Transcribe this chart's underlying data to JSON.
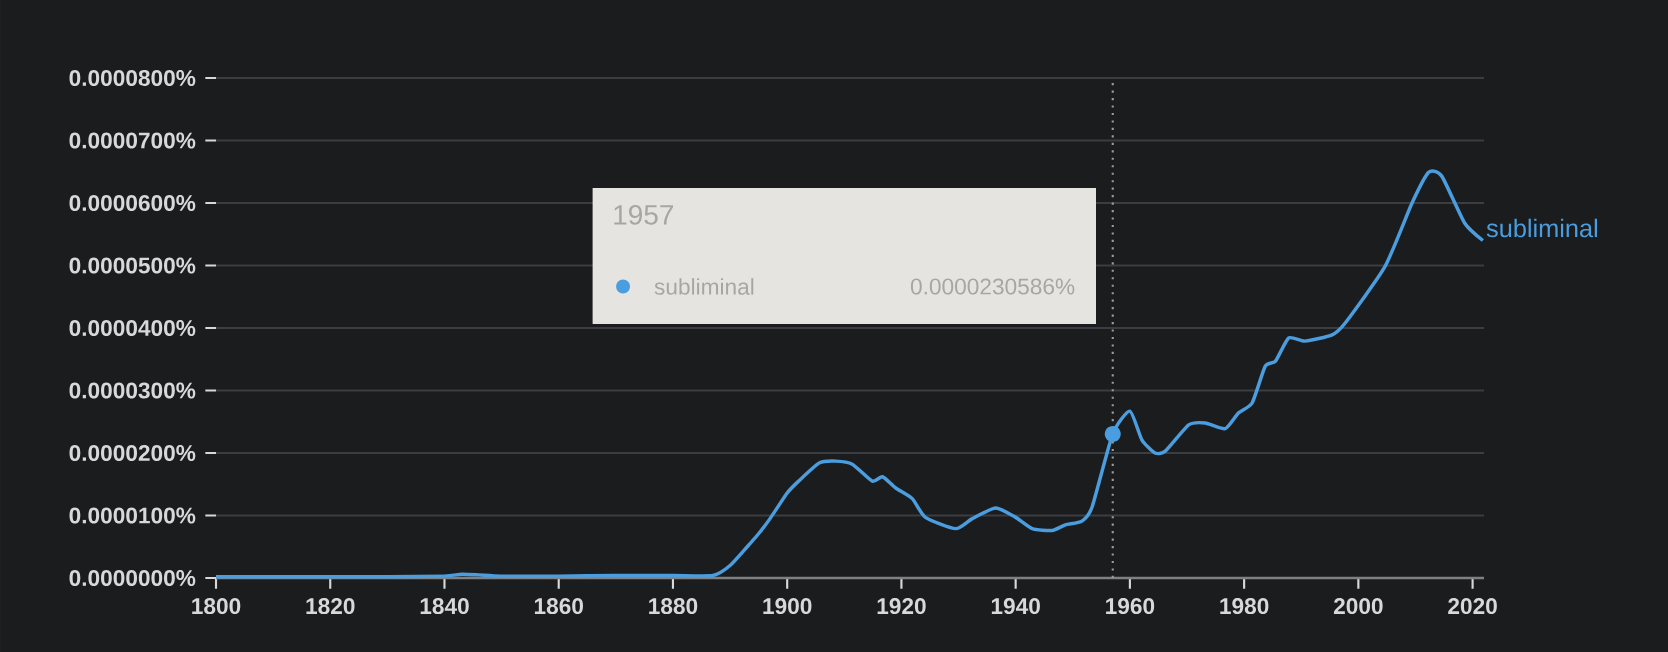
{
  "chart_data": {
    "type": "line",
    "x": [
      1800,
      1810,
      1820,
      1830,
      1840,
      1843,
      1846,
      1850,
      1860,
      1870,
      1880,
      1887,
      1890,
      1893,
      1895.1,
      1897,
      1900,
      1902,
      1905.6,
      1908.5,
      1911.4,
      1914.9,
      1916.7,
      1919,
      1921.9,
      1924.2,
      1929.5,
      1932.4,
      1936.5,
      1940,
      1942.9,
      1946.4,
      1948.7,
      1951.6,
      1953.4,
      1957,
      1960,
      1962.1,
      1964.4,
      1966.2,
      1970.3,
      1973.2,
      1976.7,
      1979,
      1981.4,
      1983.7,
      1985.5,
      1987.8,
      1990.7,
      1995.4,
      1997.7,
      2004.7,
      2009.4,
      2012.3,
      2014.6,
      2018.6,
      2021.8
    ],
    "series": [
      {
        "name": "subliminal",
        "color": "#4a9ee0",
        "values": [
          2e-07,
          2e-07,
          2e-07,
          2e-07,
          3e-07,
          6e-07,
          5e-07,
          3e-07,
          3e-07,
          4e-07,
          4e-07,
          4e-07,
          2e-06,
          5e-06,
          7.2e-06,
          9.5e-06,
          1.36e-05,
          1.55e-05,
          1.84e-05,
          1.87e-05,
          1.82e-05,
          1.55e-05,
          1.62e-05,
          1.44e-05,
          1.27e-05,
          9.7e-06,
          7.9e-06,
          9.5e-06,
          1.12e-05,
          9.7e-06,
          7.9e-06,
          7.6e-06,
          8.5e-06,
          9.1e-06,
          1.14e-05,
          2.30586e-05,
          2.67e-05,
          2.21e-05,
          2e-05,
          2.03e-05,
          2.45e-05,
          2.48e-05,
          2.39e-05,
          2.64e-05,
          2.8e-05,
          3.39e-05,
          3.47e-05,
          3.84e-05,
          3.79e-05,
          3.89e-05,
          4.08e-05,
          4.99e-05,
          6e-05,
          6.49e-05,
          6.43e-05,
          5.68e-05,
          5.4e-05
        ]
      }
    ],
    "xlim": [
      1800,
      2022
    ],
    "ylim": [
      0,
      8e-05
    ],
    "xticks": [
      1800,
      1820,
      1840,
      1860,
      1880,
      1900,
      1920,
      1940,
      1960,
      1980,
      2000,
      2020
    ],
    "yticks": [
      {
        "value": 0,
        "label": "0.0000000%"
      },
      {
        "value": 1e-05,
        "label": "0.0000100%"
      },
      {
        "value": 2e-05,
        "label": "0.0000200%"
      },
      {
        "value": 3e-05,
        "label": "0.0000300%"
      },
      {
        "value": 4e-05,
        "label": "0.0000400%"
      },
      {
        "value": 5e-05,
        "label": "0.0000500%"
      },
      {
        "value": 6e-05,
        "label": "0.0000600%"
      },
      {
        "value": 7e-05,
        "label": "0.0000700%"
      },
      {
        "value": 8e-05,
        "label": "0.0000800%"
      }
    ],
    "grid": "y",
    "marker": "none",
    "line_style": "solid",
    "ref_lines": [
      {
        "axis": "x",
        "value": 1957,
        "label": null,
        "line_style": "dotted",
        "color": "#9a9a9a"
      }
    ],
    "annotations": [
      "1957",
      "subliminal",
      "0.0000230586%"
    ]
  }
}
